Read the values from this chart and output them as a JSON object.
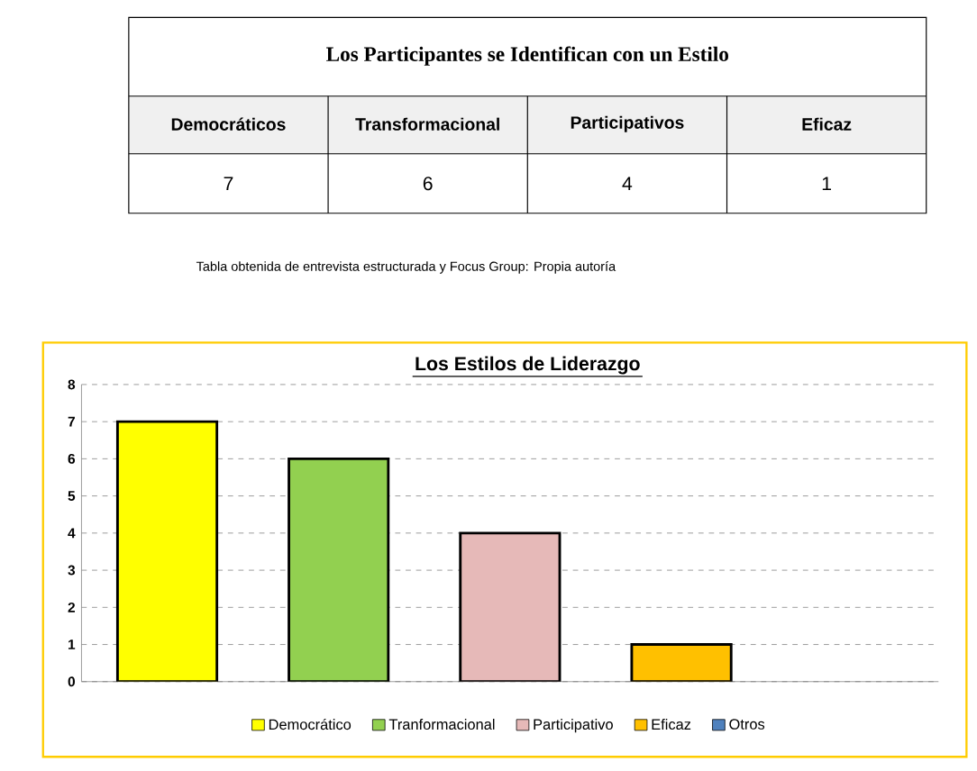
{
  "chart_data": [
    {
      "type": "other",
      "title": "Los Participantes se Identifican con un Estilo",
      "categories": [
        "Democráticos",
        "Transformacional",
        "Participativos",
        "Eficaz"
      ],
      "values": [
        7,
        6,
        4,
        1
      ],
      "data_labels": true,
      "annotations": [
        "Tabla obtenida de entrevista estructurada y Focus Group: Propia autoría"
      ]
    },
    {
      "type": "bar",
      "title": "Los Estilos de Liderazgo",
      "categories": [
        null,
        null,
        null,
        null,
        null
      ],
      "series": [
        {
          "name": "Democrático",
          "color": "#ffff00",
          "values": [
            7,
            null,
            null,
            null,
            null
          ]
        },
        {
          "name": "Tranformacional",
          "color": "#92d050",
          "values": [
            null,
            6,
            null,
            null,
            null
          ]
        },
        {
          "name": "Participativo",
          "color": "#e6b9b8",
          "values": [
            null,
            null,
            4,
            null,
            null
          ]
        },
        {
          "name": "Eficaz",
          "color": "#ffc000",
          "values": [
            null,
            null,
            null,
            1,
            null
          ]
        },
        {
          "name": "Otros",
          "color": "#4f81bd",
          "values": [
            null,
            null,
            null,
            null,
            null
          ]
        }
      ],
      "ylim": [
        0,
        8
      ],
      "yticks": [
        0,
        1,
        2,
        3,
        4,
        5,
        6,
        7,
        8
      ],
      "grid": "y",
      "legend": "bottom"
    }
  ]
}
